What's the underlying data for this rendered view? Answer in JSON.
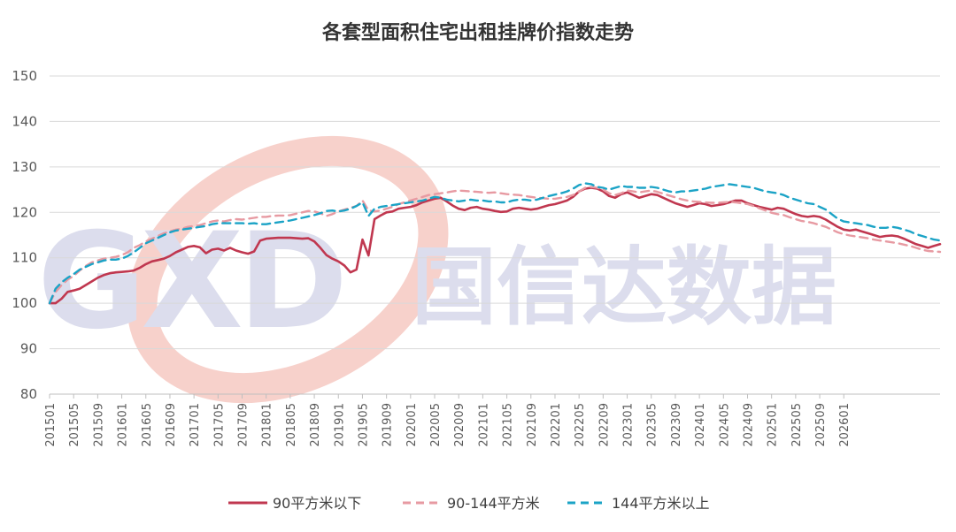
{
  "chart_data": {
    "type": "line",
    "title": "各套型面积住宅出租挂牌价指数走势",
    "xlabel": "",
    "ylabel": "",
    "ylim": [
      80,
      150
    ],
    "yticks": [
      80,
      90,
      100,
      110,
      120,
      130,
      140,
      150
    ],
    "xtick_labels": [
      "201501",
      "201505",
      "201509",
      "201601",
      "201605",
      "201609",
      "201701",
      "201705",
      "201709",
      "201801",
      "201805",
      "201809",
      "201901",
      "201905",
      "201909",
      "202001",
      "202005",
      "202009",
      "202101",
      "202105",
      "202109",
      "202201",
      "202205",
      "202209",
      "202301",
      "202305",
      "202309",
      "202401",
      "202405",
      "202409",
      "202501",
      "202505",
      "202509",
      "202601"
    ],
    "grid": true,
    "legend_position": "bottom",
    "x_start": "201501",
    "series": [
      {
        "name": "90平方米以下",
        "style": "solid",
        "color": "#c0374f",
        "values": [
          100.0,
          100.0,
          101.0,
          102.5,
          102.8,
          103.2,
          104.0,
          104.8,
          105.6,
          106.2,
          106.6,
          106.8,
          106.9,
          107.0,
          107.2,
          107.8,
          108.6,
          109.2,
          109.5,
          109.8,
          110.4,
          111.2,
          111.8,
          112.4,
          112.6,
          112.3,
          111.0,
          111.8,
          112.0,
          111.6,
          112.2,
          111.6,
          111.2,
          110.9,
          111.4,
          113.8,
          114.2,
          114.3,
          114.4,
          114.4,
          114.4,
          114.3,
          114.2,
          114.3,
          113.6,
          112.2,
          110.6,
          109.8,
          109.2,
          108.3,
          106.8,
          107.4,
          114.0,
          110.5,
          118.5,
          119.3,
          120.0,
          120.2,
          120.8,
          121.0,
          121.2,
          121.6,
          122.2,
          122.6,
          123.0,
          123.2,
          122.4,
          121.5,
          120.8,
          120.5,
          121.0,
          121.2,
          120.8,
          120.6,
          120.3,
          120.1,
          120.2,
          120.8,
          121.0,
          120.8,
          120.6,
          120.8,
          121.2,
          121.6,
          121.8,
          122.2,
          122.6,
          123.4,
          124.6,
          125.2,
          125.4,
          125.2,
          124.6,
          123.6,
          123.2,
          124.0,
          124.4,
          123.8,
          123.2,
          123.6,
          124.0,
          123.8,
          123.2,
          122.6,
          122.0,
          121.6,
          121.2,
          121.6,
          122.0,
          121.8,
          121.4,
          121.6,
          121.8,
          122.2,
          122.6,
          122.6,
          122.0,
          121.6,
          121.2,
          120.9,
          120.6,
          121.0,
          120.8,
          120.2,
          119.6,
          119.2,
          119.0,
          119.2,
          119.0,
          118.4,
          117.6,
          116.8,
          116.2,
          116.0,
          116.2,
          115.8,
          115.4,
          115.0,
          114.6,
          114.8,
          114.9,
          114.7,
          114.2,
          113.6,
          113.0,
          112.6,
          112.2,
          112.6,
          113.0
        ]
      },
      {
        "name": "90-144平方米",
        "style": "dashed",
        "color": "#e79aa2",
        "values": [
          100.0,
          102.5,
          104.0,
          105.2,
          106.0,
          107.2,
          108.2,
          109.0,
          109.4,
          109.8,
          110.0,
          110.2,
          110.6,
          111.2,
          112.2,
          112.8,
          113.6,
          114.2,
          114.8,
          115.4,
          115.8,
          116.2,
          116.4,
          116.8,
          117.0,
          117.2,
          117.6,
          118.0,
          118.2,
          118.0,
          118.3,
          118.5,
          118.4,
          118.6,
          118.8,
          119.0,
          119.0,
          119.2,
          119.3,
          119.3,
          119.4,
          119.7,
          120.0,
          120.3,
          120.2,
          119.8,
          119.2,
          119.6,
          120.2,
          120.6,
          121.0,
          121.4,
          122.6,
          120.4,
          120.2,
          120.4,
          120.8,
          121.2,
          121.8,
          122.2,
          122.6,
          123.0,
          123.4,
          123.8,
          124.0,
          124.2,
          124.4,
          124.6,
          124.8,
          124.7,
          124.6,
          124.5,
          124.4,
          124.3,
          124.4,
          124.2,
          124.0,
          123.9,
          123.8,
          123.6,
          123.4,
          123.2,
          123.1,
          123.0,
          123.0,
          123.2,
          123.4,
          123.8,
          124.6,
          125.4,
          125.6,
          125.4,
          125.0,
          124.2,
          123.8,
          124.2,
          124.8,
          124.6,
          124.4,
          124.6,
          124.8,
          124.5,
          124.1,
          123.7,
          123.3,
          122.9,
          122.6,
          122.4,
          122.3,
          122.2,
          122.1,
          122.1,
          122.2,
          122.3,
          122.2,
          122.0,
          121.8,
          121.4,
          120.9,
          120.4,
          119.9,
          119.6,
          119.4,
          118.9,
          118.5,
          118.1,
          117.9,
          117.6,
          117.2,
          116.8,
          116.2,
          115.6,
          115.2,
          114.9,
          114.7,
          114.5,
          114.3,
          114.0,
          113.8,
          113.6,
          113.4,
          113.2,
          112.9,
          112.6,
          112.2,
          111.8,
          111.5,
          111.4,
          111.3
        ]
      },
      {
        "name": "144平方米以上",
        "style": "dashed",
        "color": "#1ba3c6",
        "values": [
          100.0,
          103.2,
          104.6,
          105.6,
          106.4,
          107.4,
          108.0,
          108.6,
          109.0,
          109.4,
          109.6,
          109.6,
          109.8,
          110.4,
          111.2,
          112.2,
          113.2,
          113.8,
          114.4,
          115.0,
          115.6,
          116.0,
          116.2,
          116.4,
          116.6,
          116.8,
          117.0,
          117.4,
          117.6,
          117.6,
          117.6,
          117.6,
          117.6,
          117.5,
          117.6,
          117.4,
          117.4,
          117.6,
          117.8,
          118.0,
          118.2,
          118.5,
          118.8,
          119.1,
          119.4,
          119.8,
          120.3,
          120.4,
          120.2,
          120.4,
          120.8,
          121.4,
          122.2,
          119.2,
          120.8,
          121.2,
          121.4,
          121.6,
          121.8,
          122.0,
          122.2,
          122.4,
          122.6,
          123.0,
          123.4,
          123.2,
          122.8,
          122.6,
          122.4,
          122.6,
          122.8,
          122.6,
          122.6,
          122.4,
          122.4,
          122.2,
          122.2,
          122.6,
          122.8,
          122.8,
          122.6,
          122.8,
          123.2,
          123.6,
          123.9,
          124.2,
          124.6,
          125.2,
          126.0,
          126.4,
          126.2,
          125.6,
          125.4,
          125.0,
          125.4,
          125.8,
          125.6,
          125.6,
          125.4,
          125.4,
          125.6,
          125.4,
          125.0,
          124.6,
          124.4,
          124.6,
          124.6,
          124.8,
          125.0,
          125.2,
          125.6,
          125.8,
          126.0,
          126.2,
          126.0,
          125.8,
          125.6,
          125.4,
          125.0,
          124.6,
          124.4,
          124.2,
          123.8,
          123.2,
          122.8,
          122.4,
          122.0,
          121.8,
          121.2,
          120.6,
          119.6,
          118.6,
          118.0,
          117.8,
          117.6,
          117.4,
          117.2,
          116.8,
          116.6,
          116.6,
          116.8,
          116.6,
          116.2,
          115.8,
          115.2,
          114.8,
          114.4,
          114.0,
          113.8
        ]
      }
    ]
  },
  "watermark": {
    "logo_text": "GXD",
    "brand_text": "国信达数据"
  }
}
